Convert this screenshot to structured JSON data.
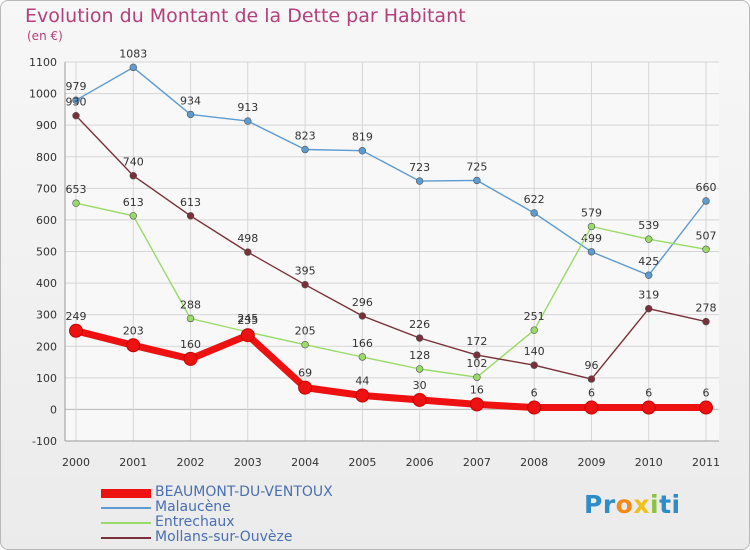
{
  "chart_data": {
    "type": "line",
    "title": "Evolution du Montant de la Dette par Habitant",
    "unit": "(en €)",
    "x": [
      "2000",
      "2001",
      "2002",
      "2003",
      "2004",
      "2005",
      "2006",
      "2007",
      "2008",
      "2009",
      "2010",
      "2011"
    ],
    "ylim": [
      -100,
      1100
    ],
    "yticks": [
      -100,
      0,
      100,
      200,
      300,
      400,
      500,
      600,
      700,
      800,
      900,
      1000,
      1100
    ],
    "ytick_labels": [
      "-100",
      "0",
      "100",
      "200",
      "300",
      "400",
      "500",
      "600",
      "700",
      "800",
      "900",
      "1000",
      "1100"
    ],
    "grid": true,
    "legend_position": "bottom-left",
    "series": [
      {
        "name": "BEAUMONT-DU-VENTOUX",
        "color": "#ee1111",
        "values": [
          249,
          203,
          160,
          235,
          69,
          44,
          30,
          16,
          6,
          6,
          6,
          6
        ]
      },
      {
        "name": "Malaucène",
        "color": "#5d9bd3",
        "values": [
          979,
          1083,
          934,
          913,
          823,
          819,
          723,
          725,
          622,
          499,
          425,
          660
        ]
      },
      {
        "name": "Entrechaux",
        "color": "#99db68",
        "values": [
          653,
          613,
          288,
          245,
          205,
          166,
          128,
          102,
          251,
          579,
          539,
          507
        ]
      },
      {
        "name": "Mollans-sur-Ouvèze",
        "color": "#7a3038",
        "values": [
          930,
          740,
          613,
          498,
          395,
          296,
          226,
          172,
          140,
          96,
          319,
          278
        ]
      }
    ]
  },
  "logo": {
    "parts": [
      "Pr",
      "o",
      "x",
      "i",
      "ti"
    ]
  }
}
